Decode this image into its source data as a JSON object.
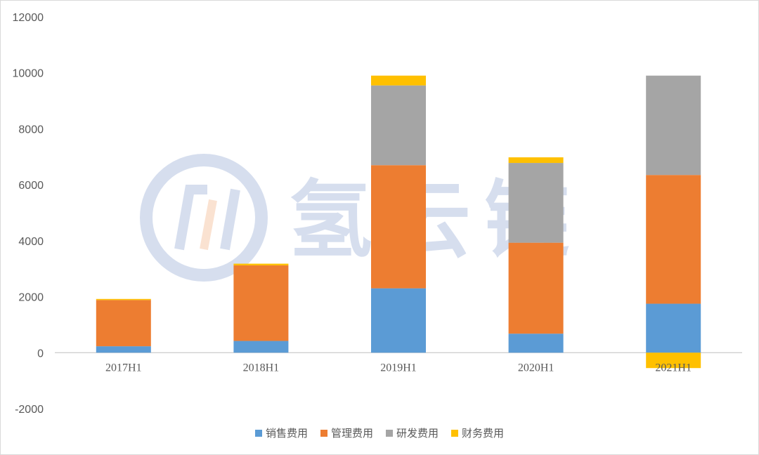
{
  "chart_data": {
    "type": "bar",
    "stacked": true,
    "categories": [
      "2017H1",
      "2018H1",
      "2019H1",
      "2020H1",
      "2021H1"
    ],
    "series": [
      {
        "name": "销售费用",
        "color": "#5b9bd5",
        "values": [
          230,
          420,
          2300,
          680,
          1750
        ]
      },
      {
        "name": "管理费用",
        "color": "#ed7d31",
        "values": [
          1650,
          2700,
          4400,
          3250,
          4600
        ]
      },
      {
        "name": "研发费用",
        "color": "#a5a5a5",
        "values": [
          0,
          0,
          2850,
          2850,
          3550
        ]
      },
      {
        "name": "财务费用",
        "color": "#ffc000",
        "values": [
          40,
          60,
          350,
          200,
          -550
        ]
      }
    ],
    "ylim": [
      -2000,
      12000
    ],
    "yticks": [
      -2000,
      0,
      2000,
      4000,
      6000,
      8000,
      10000,
      12000
    ],
    "legend_position": "bottom",
    "grid": false
  },
  "watermark": {
    "text": "氢云链",
    "icon": "logo-icon"
  }
}
